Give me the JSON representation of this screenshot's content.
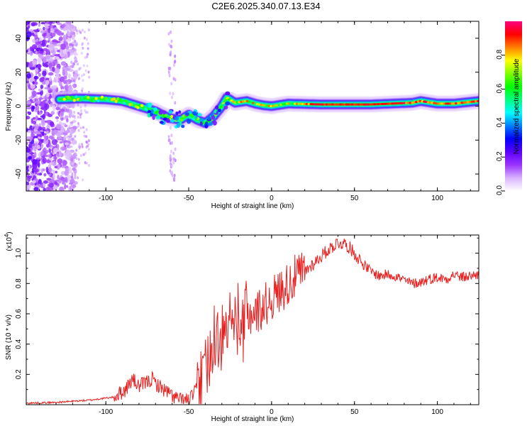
{
  "title": "C2E6.2025.340.07.13.E34",
  "chart_data": [
    {
      "type": "heatmap",
      "panel": "spectrogram",
      "xlabel": "Height of straight line (km)",
      "ylabel": "Frequency (Hz)",
      "xlim": [
        -148,
        125
      ],
      "ylim": [
        -50,
        50
      ],
      "x_ticks": [
        "-100",
        "-50",
        "0",
        "50",
        "100"
      ],
      "y_ticks": [
        "-40",
        "-20",
        "0",
        "20",
        "40"
      ],
      "ridge": {
        "x": [
          -128,
          -115,
          -100,
          -90,
          -80,
          -70,
          -62,
          -55,
          -50,
          -45,
          -40,
          -35,
          -30,
          -27,
          -22,
          -15,
          -10,
          -5,
          0,
          10,
          30,
          60,
          85,
          90,
          100,
          110,
          125
        ],
        "freq": [
          4,
          4.5,
          4,
          3,
          0,
          -3,
          -7,
          -8,
          -5,
          -8,
          -10,
          -6,
          0,
          5,
          2,
          3,
          1.5,
          0.5,
          0,
          1.5,
          1,
          1,
          2,
          3,
          1.5,
          1.5,
          3
        ]
      },
      "colorbar": {
        "label": "Normalized spectral amplitude",
        "range": [
          0,
          1
        ],
        "ticks": [
          "0.0",
          "0.2",
          "0.4",
          "0.6",
          "0.8"
        ],
        "colors": [
          "#ffffff",
          "#d9b3ff",
          "#9a33ff",
          "#5b00ff",
          "#0000ff",
          "#0080ff",
          "#00ffff",
          "#00ff80",
          "#00ff00",
          "#80ff00",
          "#ffff00",
          "#ff8000",
          "#ff0000",
          "#ff0080"
        ]
      }
    },
    {
      "type": "line",
      "panel": "snr",
      "xlabel": "Height of straight line (km)",
      "ylabel": "SNR (10 * v/v)",
      "y_scale_label": "(x10",
      "y_scale_exp": "4",
      "xlim": [
        -148,
        125
      ],
      "ylim": [
        0,
        1.12
      ],
      "x_ticks": [
        "-100",
        "-50",
        "0",
        "50",
        "100"
      ],
      "y_ticks": [
        "0.2",
        "0.4",
        "0.6",
        "0.8",
        "1.0"
      ],
      "color": "#e82020",
      "series": [
        {
          "name": "SNR",
          "x": [
            -148,
            -130,
            -110,
            -95,
            -88,
            -84,
            -80,
            -75,
            -72,
            -70,
            -65,
            -60,
            -55,
            -50,
            -45,
            -42,
            -38,
            -35,
            -32,
            -28,
            -25,
            -22,
            -18,
            -15,
            -10,
            -5,
            0,
            5,
            10,
            15,
            20,
            25,
            30,
            35,
            40,
            45,
            50,
            55,
            60,
            65,
            70,
            75,
            80,
            85,
            90,
            95,
            100,
            105,
            110,
            115,
            120,
            125
          ],
          "y": [
            0.01,
            0.015,
            0.03,
            0.05,
            0.1,
            0.17,
            0.12,
            0.15,
            0.17,
            0.14,
            0.1,
            0.06,
            0.03,
            0.03,
            0.1,
            0.2,
            0.3,
            0.45,
            0.45,
            0.4,
            0.55,
            0.55,
            0.45,
            0.6,
            0.6,
            0.65,
            0.7,
            0.75,
            0.8,
            0.85,
            0.88,
            0.93,
            0.98,
            1.03,
            1.07,
            1.06,
            1.0,
            0.93,
            0.88,
            0.85,
            0.86,
            0.85,
            0.82,
            0.8,
            0.81,
            0.83,
            0.84,
            0.83,
            0.86,
            0.84,
            0.85,
            0.86
          ]
        }
      ]
    }
  ]
}
